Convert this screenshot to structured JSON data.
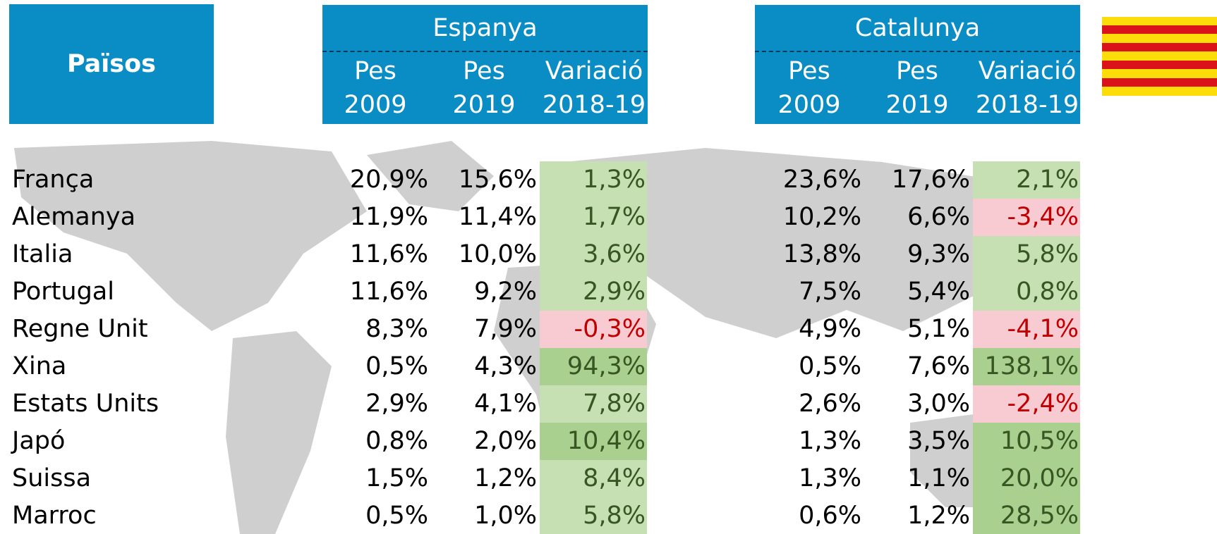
{
  "header": {
    "countries_label": "Països",
    "groups": [
      {
        "name": "Espanya",
        "columns": [
          [
            "Pes",
            "2009"
          ],
          [
            "Pes",
            "2019"
          ],
          [
            "Variació",
            "2018-19"
          ]
        ]
      },
      {
        "name": "Catalunya",
        "columns": [
          [
            "Pes",
            "2009"
          ],
          [
            "Pes",
            "2019"
          ],
          [
            "Variació",
            "2018-19"
          ]
        ]
      }
    ]
  },
  "rows": [
    {
      "country": "França",
      "values": [
        "20,9%",
        "15,6%",
        "1,3%",
        "23,6%",
        "17,6%",
        "2,1%"
      ]
    },
    {
      "country": "Alemanya",
      "values": [
        "11,9%",
        "11,4%",
        "1,7%",
        "10,2%",
        "6,6%",
        "-3,4%"
      ]
    },
    {
      "country": "Italia",
      "values": [
        "11,6%",
        "10,0%",
        "3,6%",
        "13,8%",
        "9,3%",
        "5,8%"
      ]
    },
    {
      "country": "Portugal",
      "values": [
        "11,6%",
        "9,2%",
        "2,9%",
        "7,5%",
        "5,4%",
        "0,8%"
      ]
    },
    {
      "country": "Regne Unit",
      "values": [
        "8,3%",
        "7,9%",
        "-0,3%",
        "4,9%",
        "5,1%",
        "-4,1%"
      ]
    },
    {
      "country": "Xina",
      "values": [
        "0,5%",
        "4,3%",
        "94,3%",
        "0,5%",
        "7,6%",
        "138,1%"
      ]
    },
    {
      "country": "Estats Units",
      "values": [
        "2,9%",
        "4,1%",
        "7,8%",
        "2,6%",
        "3,0%",
        "-2,4%"
      ]
    },
    {
      "country": "Japó",
      "values": [
        "0,8%",
        "2,0%",
        "10,4%",
        "1,3%",
        "3,5%",
        "10,5%"
      ]
    },
    {
      "country": "Suissa",
      "values": [
        "1,5%",
        "1,2%",
        "8,4%",
        "1,3%",
        "1,1%",
        "20,0%"
      ]
    },
    {
      "country": "Marroc",
      "values": [
        "0,5%",
        "1,0%",
        "5,8%",
        "0,6%",
        "1,2%",
        "28,5%"
      ]
    }
  ]
}
